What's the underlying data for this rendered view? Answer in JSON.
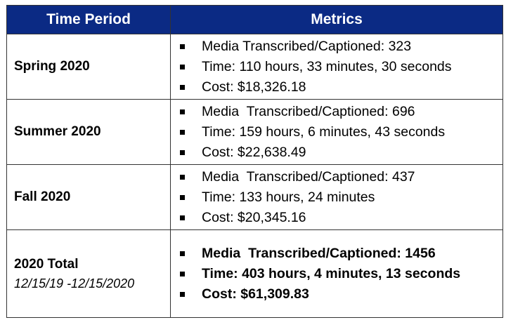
{
  "table": {
    "headers": [
      "Time Period",
      "Metrics"
    ],
    "rows": [
      {
        "period": "Spring 2020",
        "sub": "",
        "metrics": [
          "Media Transcribed/Captioned: 323",
          "Time: 110 hours, 33 minutes, 30 seconds",
          "Cost: $18,326.18"
        ]
      },
      {
        "period": "Summer 2020",
        "sub": "",
        "metrics": [
          "Media  Transcribed/Captioned: 696",
          "Time: 159 hours, 6 minutes, 43 seconds",
          "Cost: $22,638.49"
        ]
      },
      {
        "period": "Fall 2020",
        "sub": "",
        "metrics": [
          "Media  Transcribed/Captioned: 437",
          "Time: 133 hours, 24 minutes",
          "Cost: $20,345.16"
        ]
      },
      {
        "period": "2020 Total",
        "sub": "12/15/19 -12/15/2020",
        "metrics": [
          "Media  Transcribed/Captioned: 1456",
          "Time: 403 hours, 4 minutes, 13 seconds",
          "Cost: $61,309.83"
        ]
      }
    ]
  },
  "colors": {
    "header_bg": "#0b2a84",
    "header_text": "#ffffff",
    "border": "#333333"
  }
}
